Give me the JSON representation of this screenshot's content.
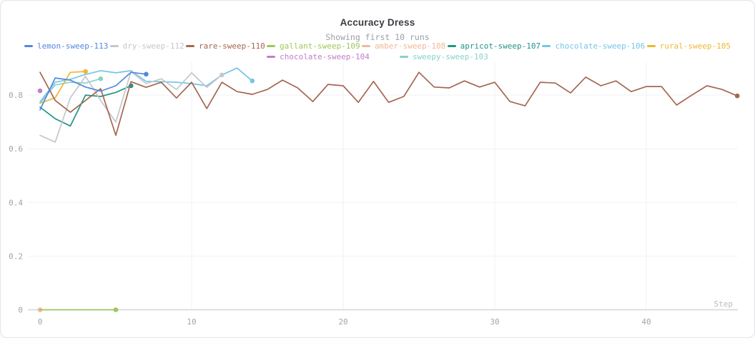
{
  "header": {
    "title": "Accuracy Dress",
    "subtitle": "Showing first 10 runs"
  },
  "legend": {
    "rows": [
      [
        "lemon-sweep-113",
        "dry-sweep-112",
        "rare-sweep-110",
        "gallant-sweep-109",
        "amber-sweep-108",
        "apricot-sweep-107",
        "chocolate-sweep-106",
        "rural-sweep-105"
      ],
      [
        "chocolate-sweep-104",
        "sweepy-sweep-103"
      ]
    ]
  },
  "ui_colors": {
    "background": "#ffffff",
    "grid": "#f2f2f2",
    "axis_line": "#d6d6d6",
    "tick_text": "#a0a4ab",
    "axis_title_text": "#b8bbc2",
    "title_text": "#3a3d42",
    "subtitle_text": "#9aa0a6"
  },
  "chart_data": {
    "type": "line",
    "title": "Accuracy Dress",
    "subtitle": "Showing first 10 runs",
    "xlabel": "Step",
    "ylabel": "",
    "xlim": [
      0,
      47
    ],
    "ylim": [
      0,
      0.92
    ],
    "x_ticks": [
      0,
      10,
      20,
      30,
      40
    ],
    "y_ticks": [
      0,
      0.2,
      0.4,
      0.6,
      0.8
    ],
    "grid": "faint",
    "legend_position": "top",
    "series": [
      {
        "name": "sweepy-sweep-103",
        "color": "#87d2c9",
        "start_step": 0,
        "end_marker": true,
        "values": [
          0.77,
          0.838,
          0.848,
          0.845,
          0.861
        ]
      },
      {
        "name": "chocolate-sweep-104",
        "color": "#c17ec9",
        "start_step": 0,
        "end_marker": true,
        "values": [
          0.816
        ]
      },
      {
        "name": "rural-sweep-105",
        "color": "#edb732",
        "start_step": 0,
        "end_marker": true,
        "values": [
          0.77,
          0.79,
          0.885,
          0.888
        ]
      },
      {
        "name": "amber-sweep-108",
        "color": "#f1b899",
        "start_step": 0,
        "end_marker": true,
        "values": [
          0.0
        ]
      },
      {
        "name": "gallant-sweep-109",
        "color": "#a0c75c",
        "start_step": 0,
        "end_marker": true,
        "values": [
          0.0,
          0.0,
          0.0,
          0.0,
          0.0,
          0.0
        ]
      },
      {
        "name": "chocolate-sweep-106",
        "color": "#76c5e6",
        "start_step": 0,
        "end_marker": true,
        "values": [
          0.775,
          0.848,
          0.859,
          0.877,
          0.891,
          0.883,
          0.891,
          0.851,
          0.85,
          0.848,
          0.843,
          0.835,
          0.875,
          0.901,
          0.853
        ]
      },
      {
        "name": "apricot-sweep-107",
        "color": "#229487",
        "start_step": 0,
        "end_marker": true,
        "values": [
          0.755,
          0.712,
          0.685,
          0.8,
          0.795,
          0.81,
          0.835
        ]
      },
      {
        "name": "dry-sweep-112",
        "color": "#c4c7cc",
        "start_step": 0,
        "end_marker": true,
        "values": [
          0.65,
          0.625,
          0.79,
          0.87,
          0.78,
          0.7,
          0.888,
          0.843,
          0.861,
          0.821,
          0.883,
          0.829,
          0.875
        ]
      },
      {
        "name": "rare-sweep-110",
        "color": "#a46750",
        "start_step": 0,
        "end_marker": true,
        "values": [
          0.885,
          0.78,
          0.736,
          0.78,
          0.824,
          0.65,
          0.85,
          0.829,
          0.848,
          0.789,
          0.848,
          0.75,
          0.848,
          0.813,
          0.803,
          0.821,
          0.856,
          0.827,
          0.776,
          0.84,
          0.835,
          0.773,
          0.851,
          0.773,
          0.795,
          0.885,
          0.83,
          0.827,
          0.853,
          0.83,
          0.848,
          0.776,
          0.76,
          0.848,
          0.845,
          0.808,
          0.867,
          0.835,
          0.853,
          0.813,
          0.832,
          0.832,
          0.763,
          0.8,
          0.835,
          0.821,
          0.797
        ]
      },
      {
        "name": "lemon-sweep-113",
        "color": "#5387dd",
        "start_step": 0,
        "end_marker": true,
        "values": [
          0.745,
          0.864,
          0.856,
          0.83,
          0.815,
          0.835,
          0.885,
          0.878
        ]
      }
    ]
  }
}
